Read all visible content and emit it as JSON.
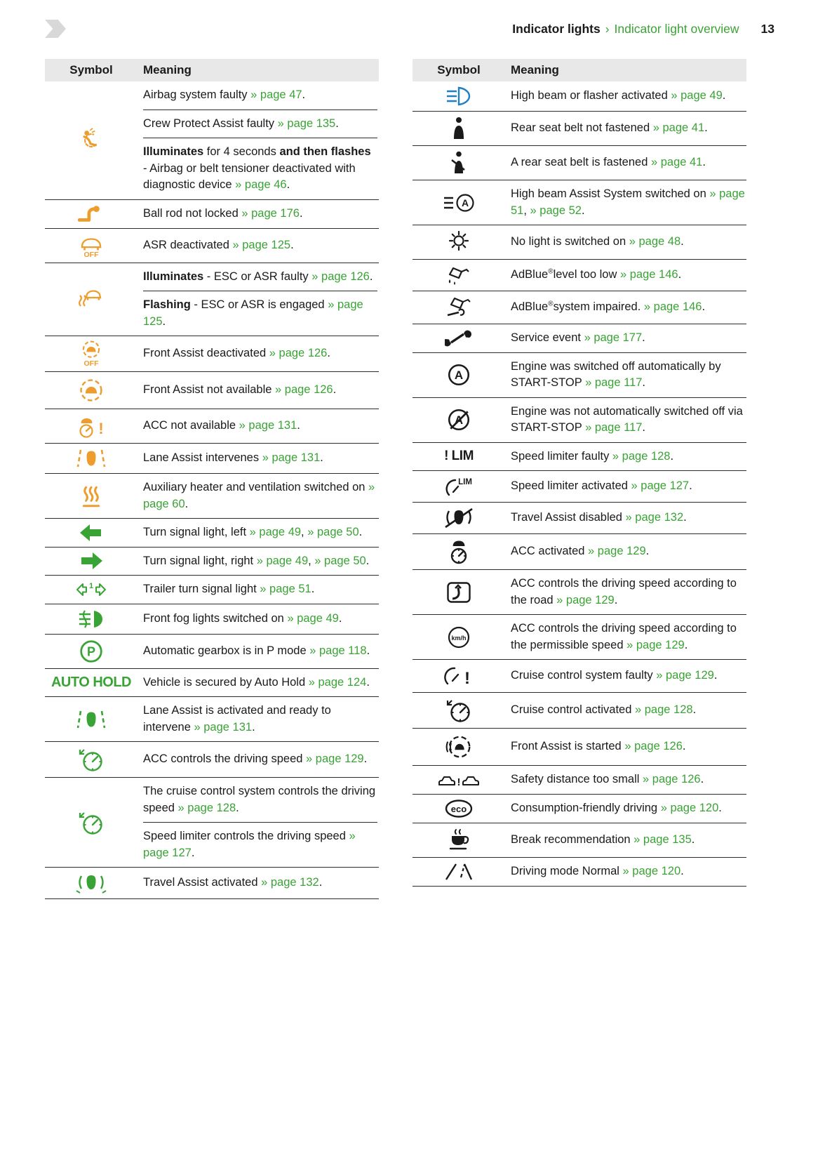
{
  "header": {
    "breadcrumb_bold": "Indicator lights",
    "breadcrumb_separator": "›",
    "breadcrumb_section": "Indicator light overview",
    "page_number": "13"
  },
  "table_headers": {
    "symbol": "Symbol",
    "meaning": "Meaning"
  },
  "colors": {
    "accent_green": "#3aa335",
    "symbol_orange": "#ec9d2d",
    "symbol_blue": "#1d7fc4",
    "symbol_black": "#1a1a1a",
    "header_band_gray": "#e8e8e8"
  },
  "left_table": {
    "rows": [
      {
        "icon": "airbag-warning",
        "color": "orange",
        "meanings": [
          [
            {
              "t": "Airbag system faulty "
            },
            {
              "t": "» page 47",
              "link": true
            },
            {
              "t": "."
            }
          ],
          [
            {
              "t": "Crew Protect Assist faulty "
            },
            {
              "t": "» page 135",
              "link": true
            },
            {
              "t": "."
            }
          ],
          [
            {
              "t": "Illuminates",
              "bold": true
            },
            {
              "t": " for 4 seconds "
            },
            {
              "t": "and then flashes",
              "bold": true
            },
            {
              "t": " - Airbag or belt tensioner deactivated with diagnostic device "
            },
            {
              "t": "» page 46",
              "link": true
            },
            {
              "t": "."
            }
          ]
        ]
      },
      {
        "icon": "ball-rod",
        "color": "orange",
        "meanings": [
          [
            {
              "t": "Ball rod not locked "
            },
            {
              "t": "» page 176",
              "link": true
            },
            {
              "t": "."
            }
          ]
        ]
      },
      {
        "icon": "asr-off",
        "color": "orange",
        "icon_text": "OFF",
        "meanings": [
          [
            {
              "t": "ASR deactivated "
            },
            {
              "t": "» page 125",
              "link": true
            },
            {
              "t": "."
            }
          ]
        ]
      },
      {
        "icon": "esc-skid",
        "color": "orange",
        "meanings": [
          [
            {
              "t": "Illuminates",
              "bold": true
            },
            {
              "t": " - ESC or ASR faulty "
            },
            {
              "t": "» page 126",
              "link": true
            },
            {
              "t": "."
            }
          ],
          [
            {
              "t": "Flashing",
              "bold": true
            },
            {
              "t": " - ESC or ASR is engaged "
            },
            {
              "t": "» page 125",
              "link": true
            },
            {
              "t": "."
            }
          ]
        ]
      },
      {
        "icon": "front-assist-off",
        "color": "orange",
        "icon_text": "OFF",
        "meanings": [
          [
            {
              "t": "Front Assist deactivated "
            },
            {
              "t": "» page 126",
              "link": true
            },
            {
              "t": "."
            }
          ]
        ]
      },
      {
        "icon": "front-assist",
        "color": "orange",
        "meanings": [
          [
            {
              "t": "Front Assist not available "
            },
            {
              "t": "» page 126",
              "link": true
            },
            {
              "t": "."
            }
          ]
        ]
      },
      {
        "icon": "acc-warning",
        "color": "orange",
        "meanings": [
          [
            {
              "t": "ACC not available "
            },
            {
              "t": "» page 131",
              "link": true
            },
            {
              "t": "."
            }
          ]
        ]
      },
      {
        "icon": "lane-assist",
        "color": "orange",
        "meanings": [
          [
            {
              "t": "Lane Assist intervenes "
            },
            {
              "t": "» page 131",
              "link": true
            },
            {
              "t": "."
            }
          ]
        ]
      },
      {
        "icon": "aux-heater",
        "color": "orange",
        "meanings": [
          [
            {
              "t": "Auxiliary heater and ventilation switched on "
            },
            {
              "t": "» page 60",
              "link": true
            },
            {
              "t": "."
            }
          ]
        ]
      },
      {
        "icon": "turn-signal-left",
        "color": "green",
        "meanings": [
          [
            {
              "t": "Turn signal light, left "
            },
            {
              "t": "» page 49",
              "link": true
            },
            {
              "t": ", "
            },
            {
              "t": "» page 50",
              "link": true
            },
            {
              "t": "."
            }
          ]
        ]
      },
      {
        "icon": "turn-signal-right",
        "color": "green",
        "meanings": [
          [
            {
              "t": "Turn signal light, right "
            },
            {
              "t": "» page 49",
              "link": true
            },
            {
              "t": ", "
            },
            {
              "t": "» page 50",
              "link": true
            },
            {
              "t": "."
            }
          ]
        ]
      },
      {
        "icon": "trailer-turn-signal",
        "color": "green",
        "icon_text": "1",
        "meanings": [
          [
            {
              "t": "Trailer turn signal light "
            },
            {
              "t": "» page 51",
              "link": true
            },
            {
              "t": "."
            }
          ]
        ]
      },
      {
        "icon": "front-fog-light",
        "color": "green",
        "meanings": [
          [
            {
              "t": "Front fog lights switched on "
            },
            {
              "t": "» page 49",
              "link": true
            },
            {
              "t": "."
            }
          ]
        ]
      },
      {
        "icon": "gearbox-p",
        "color": "green",
        "icon_text": "P",
        "meanings": [
          [
            {
              "t": "Automatic gearbox is in P mode "
            },
            {
              "t": "» page 118",
              "link": true
            },
            {
              "t": "."
            }
          ]
        ]
      },
      {
        "icon": "auto-hold",
        "color": "green",
        "icon_text": "AUTO HOLD",
        "meanings": [
          [
            {
              "t": "Vehicle is secured by Auto Hold "
            },
            {
              "t": "» page 124",
              "link": true
            },
            {
              "t": "."
            }
          ]
        ]
      },
      {
        "icon": "lane-assist",
        "color": "green",
        "meanings": [
          [
            {
              "t": "Lane Assist is activated and ready to intervene "
            },
            {
              "t": "» page 131",
              "link": true
            },
            {
              "t": "."
            }
          ]
        ]
      },
      {
        "icon": "speedometer-arrow",
        "color": "green",
        "meanings": [
          [
            {
              "t": "ACC controls the driving speed "
            },
            {
              "t": "» page 129",
              "link": true
            },
            {
              "t": "."
            }
          ]
        ]
      },
      {
        "icon": "speedometer-arrow",
        "color": "green",
        "meanings": [
          [
            {
              "t": "The cruise control system controls the driving speed "
            },
            {
              "t": "» page 128",
              "link": true
            },
            {
              "t": "."
            }
          ],
          [
            {
              "t": "Speed limiter controls the driving speed "
            },
            {
              "t": "» page 127",
              "link": true
            },
            {
              "t": "."
            }
          ]
        ]
      },
      {
        "icon": "travel-assist",
        "color": "green",
        "meanings": [
          [
            {
              "t": "Travel Assist activated "
            },
            {
              "t": "» page 132",
              "link": true
            },
            {
              "t": "."
            }
          ]
        ]
      }
    ]
  },
  "right_table": {
    "rows": [
      {
        "icon": "high-beam",
        "color": "blue",
        "meanings": [
          [
            {
              "t": "High beam or flasher activated "
            },
            {
              "t": "» page 49",
              "link": true
            },
            {
              "t": "."
            }
          ]
        ]
      },
      {
        "icon": "seat-belt-unfastened",
        "color": "black",
        "meanings": [
          [
            {
              "t": "Rear seat belt not fastened "
            },
            {
              "t": "» page 41",
              "link": true
            },
            {
              "t": "."
            }
          ]
        ]
      },
      {
        "icon": "seat-belt-fastened",
        "color": "black",
        "meanings": [
          [
            {
              "t": "A rear seat belt is fastened "
            },
            {
              "t": "» page 41",
              "link": true
            },
            {
              "t": "."
            }
          ]
        ]
      },
      {
        "icon": "high-beam-assist",
        "color": "black",
        "icon_text": "A",
        "meanings": [
          [
            {
              "t": "High beam Assist System switched on "
            },
            {
              "t": "» page 51",
              "link": true
            },
            {
              "t": ", "
            },
            {
              "t": "» page 52",
              "link": true
            },
            {
              "t": "."
            }
          ]
        ]
      },
      {
        "icon": "no-light",
        "color": "black",
        "meanings": [
          [
            {
              "t": "No light is switched on "
            },
            {
              "t": "» page 48",
              "link": true
            },
            {
              "t": "."
            }
          ]
        ]
      },
      {
        "icon": "adblue-level-low",
        "color": "black",
        "meanings": [
          [
            {
              "t": "AdBlue"
            },
            {
              "t": "®",
              "sup": true
            },
            {
              "t": "level too low "
            },
            {
              "t": "» page 146",
              "link": true
            },
            {
              "t": "."
            }
          ]
        ]
      },
      {
        "icon": "adblue-system-impaired",
        "color": "black",
        "meanings": [
          [
            {
              "t": "AdBlue"
            },
            {
              "t": "®",
              "sup": true
            },
            {
              "t": "system impaired. "
            },
            {
              "t": "» page 146",
              "link": true
            },
            {
              "t": "."
            }
          ]
        ]
      },
      {
        "icon": "service-wrench",
        "color": "black",
        "meanings": [
          [
            {
              "t": "Service event "
            },
            {
              "t": "» page 177",
              "link": true
            },
            {
              "t": "."
            }
          ]
        ]
      },
      {
        "icon": "start-stop",
        "color": "black",
        "icon_text": "A",
        "meanings": [
          [
            {
              "t": "Engine was switched off automatically by START-STOP "
            },
            {
              "t": "» page 117",
              "link": true
            },
            {
              "t": "."
            }
          ]
        ]
      },
      {
        "icon": "start-stop-off",
        "color": "black",
        "icon_text": "A",
        "meanings": [
          [
            {
              "t": "Engine was not automatically switched off via START-STOP "
            },
            {
              "t": "» page 117",
              "link": true
            },
            {
              "t": "."
            }
          ]
        ]
      },
      {
        "icon": "speed-limiter-faulty",
        "color": "black",
        "icon_text": "! LIM",
        "meanings": [
          [
            {
              "t": "Speed limiter faulty "
            },
            {
              "t": "» page 128",
              "link": true
            },
            {
              "t": "."
            }
          ]
        ]
      },
      {
        "icon": "speed-limiter-activated",
        "color": "black",
        "icon_text": "LIM",
        "meanings": [
          [
            {
              "t": "Speed limiter activated "
            },
            {
              "t": "» page 127",
              "link": true
            },
            {
              "t": "."
            }
          ]
        ]
      },
      {
        "icon": "travel-assist-disabled",
        "color": "black",
        "meanings": [
          [
            {
              "t": "Travel Assist disabled "
            },
            {
              "t": "» page 132",
              "link": true
            },
            {
              "t": "."
            }
          ]
        ]
      },
      {
        "icon": "acc-activated",
        "color": "black",
        "meanings": [
          [
            {
              "t": "ACC activated "
            },
            {
              "t": "» page 129",
              "link": true
            },
            {
              "t": "."
            }
          ]
        ]
      },
      {
        "icon": "acc-road",
        "color": "black",
        "meanings": [
          [
            {
              "t": "ACC controls the driving speed according to the road "
            },
            {
              "t": "» page 129",
              "link": true
            },
            {
              "t": "."
            }
          ]
        ]
      },
      {
        "icon": "acc-speed-limit",
        "color": "black",
        "icon_text": "km/h",
        "meanings": [
          [
            {
              "t": "ACC controls the driving speed according to the permissible speed "
            },
            {
              "t": "» page 129",
              "link": true
            },
            {
              "t": "."
            }
          ]
        ]
      },
      {
        "icon": "cruise-control-faulty",
        "color": "black",
        "meanings": [
          [
            {
              "t": "Cruise control system faulty "
            },
            {
              "t": "» page 129",
              "link": true
            },
            {
              "t": "."
            }
          ]
        ]
      },
      {
        "icon": "speedometer-arrow",
        "color": "black",
        "meanings": [
          [
            {
              "t": "Cruise control activated "
            },
            {
              "t": "» page 128",
              "link": true
            },
            {
              "t": "."
            }
          ]
        ]
      },
      {
        "icon": "front-assist-started",
        "color": "black",
        "meanings": [
          [
            {
              "t": "Front Assist is started "
            },
            {
              "t": "» page 126",
              "link": true
            },
            {
              "t": "."
            }
          ]
        ]
      },
      {
        "icon": "safety-distance",
        "color": "black",
        "meanings": [
          [
            {
              "t": "Safety distance too small "
            },
            {
              "t": "» page 126",
              "link": true
            },
            {
              "t": "."
            }
          ]
        ]
      },
      {
        "icon": "eco",
        "color": "black",
        "icon_text": "eco",
        "meanings": [
          [
            {
              "t": "Consumption-friendly driving "
            },
            {
              "t": "» page 120",
              "link": true
            },
            {
              "t": "."
            }
          ]
        ]
      },
      {
        "icon": "break-recommendation",
        "color": "black",
        "meanings": [
          [
            {
              "t": "Break recommendation "
            },
            {
              "t": "» page 135",
              "link": true
            },
            {
              "t": "."
            }
          ]
        ]
      },
      {
        "icon": "driving-mode-normal",
        "color": "black",
        "meanings": [
          [
            {
              "t": "Driving mode Normal "
            },
            {
              "t": "» page 120",
              "link": true
            },
            {
              "t": "."
            }
          ]
        ]
      }
    ]
  }
}
